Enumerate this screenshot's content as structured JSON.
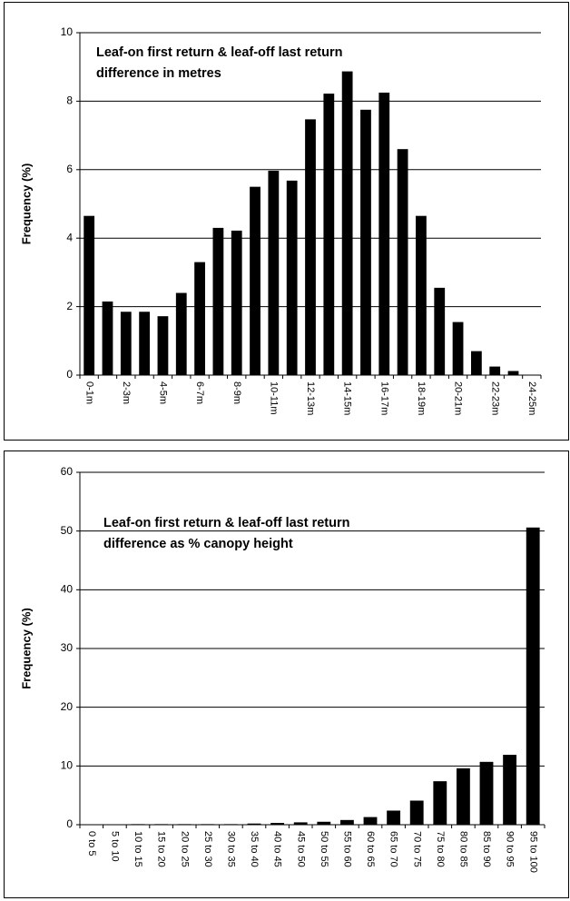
{
  "chart_data": [
    {
      "type": "bar",
      "title": [
        "Leaf-on first return & leaf-off last return",
        "difference in metres"
      ],
      "y_label": "Frequency (%)",
      "categories": [
        "0-1m",
        null,
        "2-3m",
        null,
        "4-5m",
        null,
        "6-7m",
        null,
        "8-9m",
        null,
        "10-11m",
        null,
        "12-13m",
        null,
        "14-15m",
        null,
        "16-17m",
        null,
        "18-19m",
        null,
        "20-21m",
        null,
        "22-23m",
        null,
        "24-25m"
      ],
      "values": [
        4.65,
        2.15,
        1.85,
        1.85,
        1.72,
        2.4,
        3.3,
        4.3,
        4.22,
        5.5,
        5.97,
        5.68,
        7.47,
        8.22,
        8.87,
        7.75,
        8.25,
        6.6,
        4.65,
        2.55,
        1.55,
        0.7,
        0.25,
        0.12,
        0
      ],
      "color": "#000000",
      "ylim": [
        0,
        10
      ],
      "yticks": [
        0,
        2,
        4,
        6,
        8,
        10
      ],
      "grid": true
    },
    {
      "type": "bar",
      "title": [
        "Leaf-on first return & leaf-off last return",
        "difference as % canopy height"
      ],
      "y_label": "Frequency (%)",
      "categories": [
        "0 to 5",
        "5 to 10",
        "10 to 15",
        "15 to 20",
        "20 to 25",
        "25 to 30",
        "30 to 35",
        "35 to 40",
        "40 to 45",
        "45 to 50",
        "50 to 55",
        "55 to 60",
        "60 to 65",
        "65 to 70",
        "70 to 75",
        "75 to 80",
        "80 to 85",
        "85 to 90",
        "90 to 95",
        "95 to 100"
      ],
      "values": [
        0,
        0,
        0.1,
        0.1,
        0.1,
        0.1,
        0.1,
        0.2,
        0.3,
        0.4,
        0.5,
        0.8,
        1.3,
        2.4,
        4.1,
        7.4,
        9.6,
        10.7,
        11.9,
        50.6
      ],
      "color": "#000000",
      "ylim": [
        0,
        60
      ],
      "yticks": [
        0,
        10,
        20,
        30,
        40,
        50,
        60
      ],
      "grid": true
    }
  ]
}
